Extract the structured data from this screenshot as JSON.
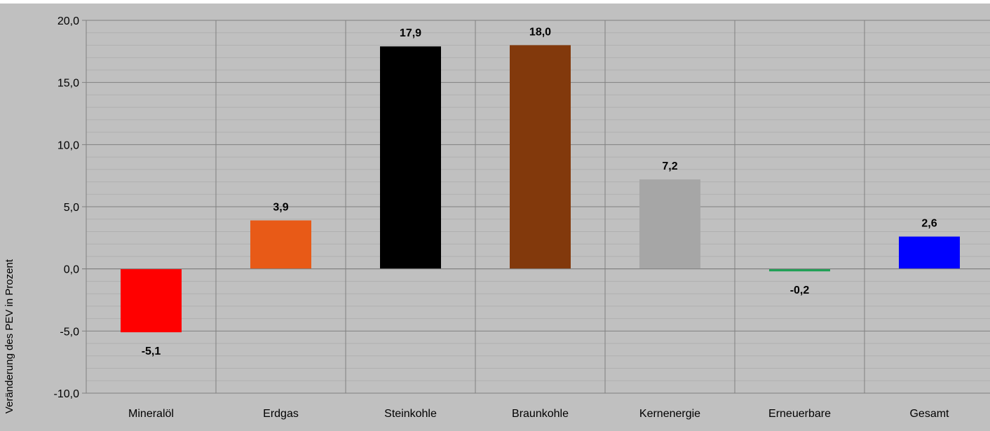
{
  "chart_data": {
    "type": "bar",
    "categories": [
      "Mineralöl",
      "Erdgas",
      "Steinkohle",
      "Braunkohle",
      "Kernenergie",
      "Erneuerbare",
      "Gesamt"
    ],
    "values": [
      -5.1,
      3.9,
      17.9,
      18.0,
      7.2,
      -0.2,
      2.6
    ],
    "value_labels": [
      "-5,1",
      "3,9",
      "17,9",
      "18,0",
      "7,2",
      "-0,2",
      "2,6"
    ],
    "colors": [
      "#ff0000",
      "#e85a17",
      "#000000",
      "#82390c",
      "#a6a6a6",
      "#1fa055",
      "#0000ff"
    ],
    "title": "",
    "xlabel": "",
    "ylabel": "Veränderung des PEV in Prozent",
    "ylim": [
      -10,
      20
    ],
    "yticks": [
      -10,
      -5,
      0,
      5,
      10,
      15,
      20
    ],
    "ytick_labels": [
      "-10,0",
      "-5,0",
      "0,0",
      "5,0",
      "10,0",
      "15,0",
      "20,0"
    ],
    "grid": true,
    "legend": "none",
    "plot_background": "#c0c0c0"
  }
}
